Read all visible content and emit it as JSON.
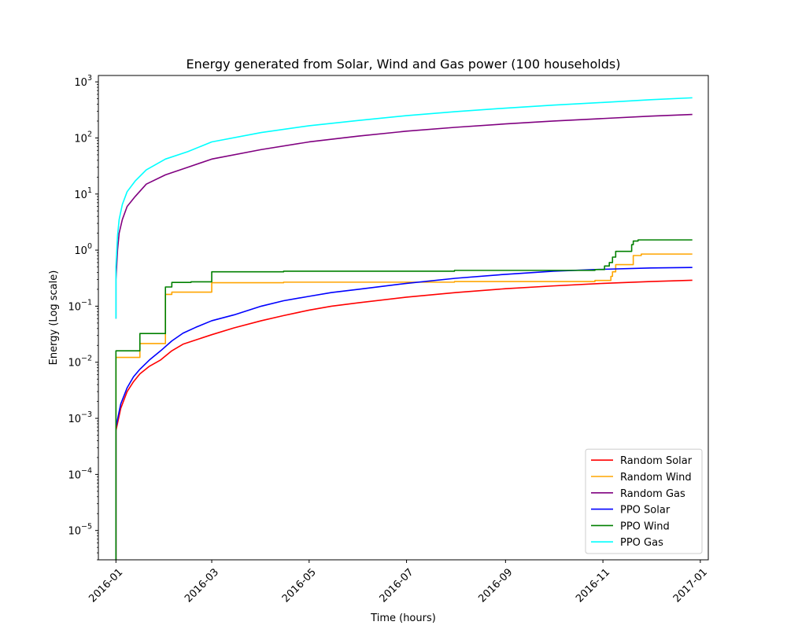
{
  "chart_data": {
    "type": "line",
    "title": "Energy generated from Solar, Wind and Gas power (100 households)",
    "xlabel": "Time (hours)",
    "ylabel": "Energy (Log scale)",
    "x_axis": {
      "type": "date",
      "range": [
        "2015-12-21",
        "2017-01-06"
      ],
      "ticks": [
        "2016-01",
        "2016-03",
        "2016-05",
        "2016-07",
        "2016-09",
        "2016-11",
        "2017-01"
      ]
    },
    "y_axis": {
      "scale": "log",
      "range": [
        3e-06,
        1300
      ],
      "ticks": [
        {
          "value": 1e-05,
          "base": "10",
          "exp": "−5"
        },
        {
          "value": 0.0001,
          "base": "10",
          "exp": "−4"
        },
        {
          "value": 0.001,
          "base": "10",
          "exp": "−3"
        },
        {
          "value": 0.01,
          "base": "10",
          "exp": "−2"
        },
        {
          "value": 0.1,
          "base": "10",
          "exp": "−1"
        },
        {
          "value": 1,
          "base": "10",
          "exp": "0"
        },
        {
          "value": 10,
          "base": "10",
          "exp": "1"
        },
        {
          "value": 100,
          "base": "10",
          "exp": "2"
        },
        {
          "value": 1000,
          "base": "10",
          "exp": "3"
        }
      ]
    },
    "grid": false,
    "legend_position": "lower-right",
    "series": [
      {
        "name": "Random Solar",
        "color": "#ff0000",
        "step": false,
        "points": [
          [
            "2016-01-01",
            3e-06
          ],
          [
            "2016-01-01",
            0.0006
          ],
          [
            "2016-01-04",
            0.0015
          ],
          [
            "2016-01-08",
            0.003
          ],
          [
            "2016-01-12",
            0.0045
          ],
          [
            "2016-01-16",
            0.0062
          ],
          [
            "2016-01-22",
            0.0085
          ],
          [
            "2016-01-29",
            0.011
          ],
          [
            "2016-02-05",
            0.016
          ],
          [
            "2016-02-12",
            0.021
          ],
          [
            "2016-02-20",
            0.025
          ],
          [
            "2016-03-01",
            0.031
          ],
          [
            "2016-03-15",
            0.041
          ],
          [
            "2016-04-01",
            0.055
          ],
          [
            "2016-04-15",
            0.068
          ],
          [
            "2016-05-01",
            0.085
          ],
          [
            "2016-05-15",
            0.1
          ],
          [
            "2016-06-01",
            0.115
          ],
          [
            "2016-07-01",
            0.145
          ],
          [
            "2016-08-01",
            0.175
          ],
          [
            "2016-09-01",
            0.205
          ],
          [
            "2016-10-01",
            0.23
          ],
          [
            "2016-11-01",
            0.255
          ],
          [
            "2016-12-01",
            0.275
          ],
          [
            "2016-12-27",
            0.29
          ]
        ]
      },
      {
        "name": "Random Wind",
        "color": "#ffa500",
        "step": true,
        "points": [
          [
            "2016-01-01",
            3e-06
          ],
          [
            "2016-01-01",
            0.0122
          ],
          [
            "2016-01-16",
            0.0216
          ],
          [
            "2016-02-01",
            0.162
          ],
          [
            "2016-02-05",
            0.178
          ],
          [
            "2016-03-01",
            0.262
          ],
          [
            "2016-04-15",
            0.268
          ],
          [
            "2016-07-31",
            0.275
          ],
          [
            "2016-10-27",
            0.288
          ],
          [
            "2016-11-06",
            0.34
          ],
          [
            "2016-11-07",
            0.41
          ],
          [
            "2016-11-09",
            0.55
          ],
          [
            "2016-11-20",
            0.8
          ],
          [
            "2016-11-25",
            0.85
          ],
          [
            "2016-12-27",
            0.85
          ]
        ]
      },
      {
        "name": "Random Gas",
        "color": "#800080",
        "step": false,
        "points": [
          [
            "2016-01-01",
            0.06
          ],
          [
            "2016-01-01",
            0.3
          ],
          [
            "2016-01-02",
            1.0
          ],
          [
            "2016-01-03",
            2.0
          ],
          [
            "2016-01-05",
            3.5
          ],
          [
            "2016-01-08",
            6.0
          ],
          [
            "2016-01-13",
            9.0
          ],
          [
            "2016-01-20",
            15
          ],
          [
            "2016-02-01",
            22
          ],
          [
            "2016-02-15",
            30
          ],
          [
            "2016-03-01",
            42
          ],
          [
            "2016-04-01",
            62
          ],
          [
            "2016-05-01",
            85
          ],
          [
            "2016-06-01",
            108
          ],
          [
            "2016-07-01",
            132
          ],
          [
            "2016-08-01",
            155
          ],
          [
            "2016-09-01",
            178
          ],
          [
            "2016-10-01",
            200
          ],
          [
            "2016-11-01",
            222
          ],
          [
            "2016-12-01",
            245
          ],
          [
            "2016-12-27",
            262
          ]
        ]
      },
      {
        "name": "PPO Solar",
        "color": "#0000ff",
        "step": false,
        "points": [
          [
            "2016-01-01",
            3e-06
          ],
          [
            "2016-01-01",
            0.0007
          ],
          [
            "2016-01-04",
            0.0018
          ],
          [
            "2016-01-08",
            0.0035
          ],
          [
            "2016-01-12",
            0.0055
          ],
          [
            "2016-01-16",
            0.0075
          ],
          [
            "2016-01-22",
            0.011
          ],
          [
            "2016-01-29",
            0.016
          ],
          [
            "2016-02-05",
            0.024
          ],
          [
            "2016-02-12",
            0.033
          ],
          [
            "2016-02-20",
            0.042
          ],
          [
            "2016-03-01",
            0.055
          ],
          [
            "2016-03-15",
            0.07
          ],
          [
            "2016-04-01",
            0.1
          ],
          [
            "2016-04-15",
            0.125
          ],
          [
            "2016-05-01",
            0.15
          ],
          [
            "2016-05-15",
            0.175
          ],
          [
            "2016-06-01",
            0.2
          ],
          [
            "2016-07-01",
            0.255
          ],
          [
            "2016-08-01",
            0.315
          ],
          [
            "2016-09-01",
            0.37
          ],
          [
            "2016-10-01",
            0.42
          ],
          [
            "2016-11-01",
            0.455
          ],
          [
            "2016-12-01",
            0.48
          ],
          [
            "2016-12-27",
            0.49
          ]
        ]
      },
      {
        "name": "PPO Wind",
        "color": "#008000",
        "step": true,
        "points": [
          [
            "2016-01-01",
            3e-06
          ],
          [
            "2016-01-01",
            0.016
          ],
          [
            "2016-01-16",
            0.0325
          ],
          [
            "2016-02-01",
            0.22
          ],
          [
            "2016-02-05",
            0.265
          ],
          [
            "2016-02-17",
            0.272
          ],
          [
            "2016-03-01",
            0.41
          ],
          [
            "2016-04-15",
            0.42
          ],
          [
            "2016-07-31",
            0.435
          ],
          [
            "2016-10-27",
            0.45
          ],
          [
            "2016-11-02",
            0.52
          ],
          [
            "2016-11-05",
            0.6
          ],
          [
            "2016-11-07",
            0.75
          ],
          [
            "2016-11-09",
            0.95
          ],
          [
            "2016-11-19",
            1.25
          ],
          [
            "2016-11-20",
            1.45
          ],
          [
            "2016-11-23",
            1.52
          ],
          [
            "2016-12-27",
            1.52
          ]
        ]
      },
      {
        "name": "PPO Gas",
        "color": "#00ffff",
        "step": false,
        "points": [
          [
            "2016-01-01",
            0.06
          ],
          [
            "2016-01-01",
            0.5
          ],
          [
            "2016-01-02",
            1.8
          ],
          [
            "2016-01-03",
            3.5
          ],
          [
            "2016-01-05",
            6.5
          ],
          [
            "2016-01-08",
            11
          ],
          [
            "2016-01-13",
            17
          ],
          [
            "2016-01-20",
            27
          ],
          [
            "2016-02-01",
            42
          ],
          [
            "2016-02-15",
            57
          ],
          [
            "2016-03-01",
            85
          ],
          [
            "2016-04-01",
            125
          ],
          [
            "2016-05-01",
            165
          ],
          [
            "2016-06-01",
            205
          ],
          [
            "2016-07-01",
            250
          ],
          [
            "2016-08-01",
            295
          ],
          [
            "2016-09-01",
            340
          ],
          [
            "2016-10-01",
            385
          ],
          [
            "2016-11-01",
            430
          ],
          [
            "2016-12-01",
            480
          ],
          [
            "2016-12-27",
            520
          ]
        ]
      }
    ]
  }
}
